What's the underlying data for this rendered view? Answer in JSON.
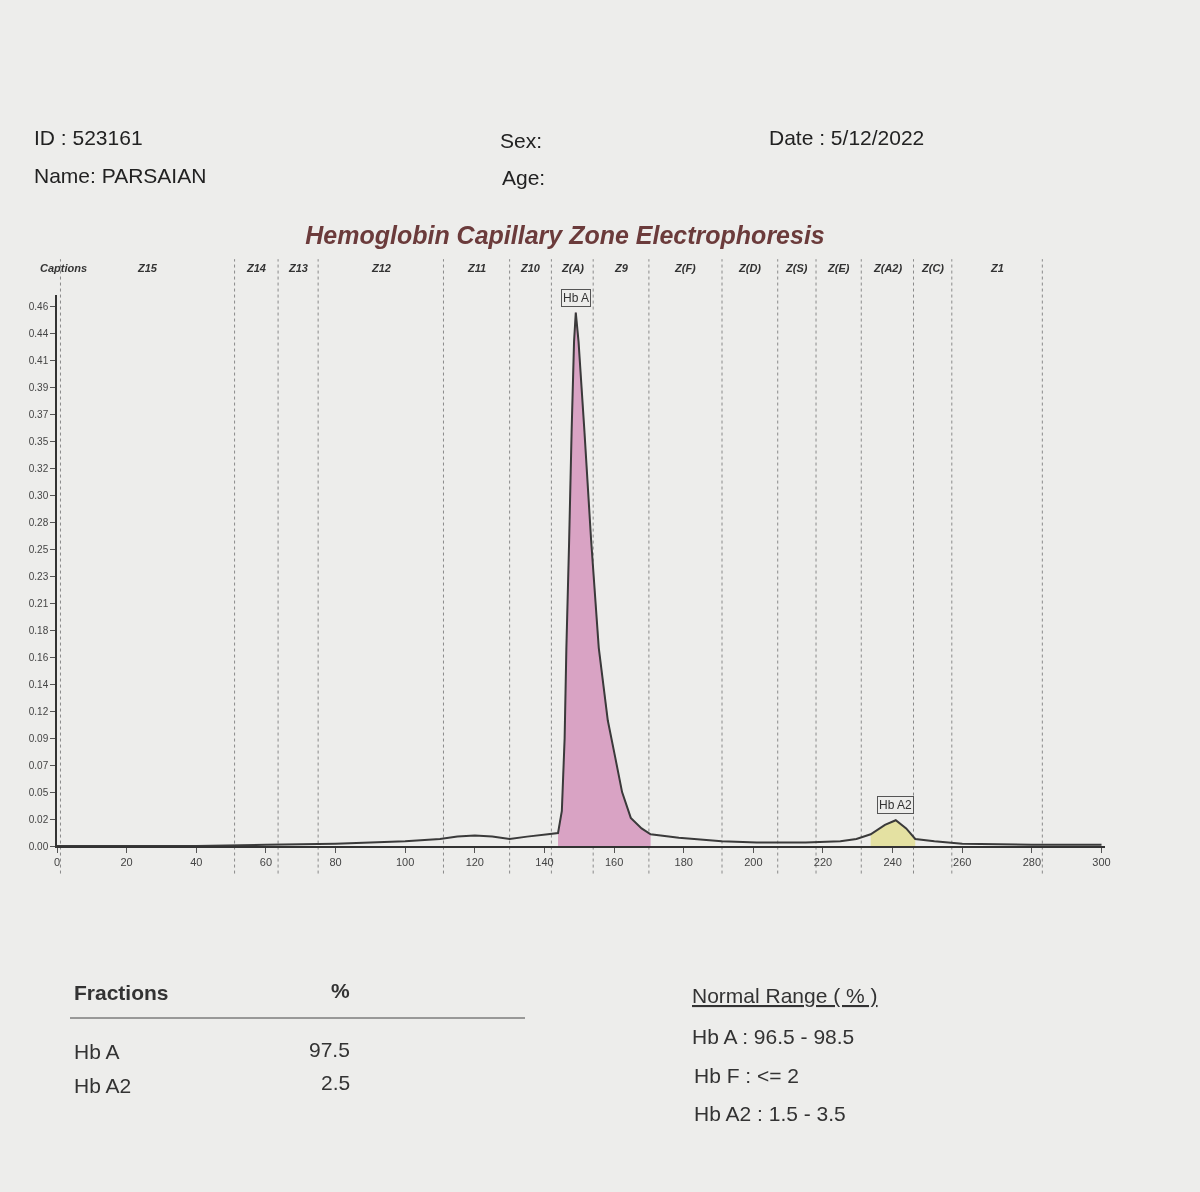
{
  "chart_data": {
    "type": "line",
    "title": "Hemoglobin Capillary Zone Electrophoresis",
    "series": [
      {
        "color": "#3a3a3a",
        "x": [
          0,
          20,
          40,
          60,
          80,
          100,
          110,
          115,
          120,
          125,
          130,
          135,
          141,
          143.9,
          145,
          145.8,
          146.3,
          147.1,
          147.8,
          148.5,
          149,
          149.8,
          151.5,
          153.4,
          155.6,
          158.2,
          160.3,
          162.3,
          164.8,
          167.9,
          170.5,
          178.6,
          190.9,
          201,
          215,
          225,
          229.6,
          233.7,
          237.8,
          240.9,
          243.9,
          246.5,
          252,
          260,
          280,
          300
        ],
        "values": [
          0,
          0,
          0,
          0.001,
          0.002,
          0.004,
          0.006,
          0.008,
          0.009,
          0.008,
          0.006,
          0.008,
          0.01,
          0.011,
          0.03,
          0.092,
          0.169,
          0.261,
          0.353,
          0.43,
          0.455,
          0.43,
          0.353,
          0.261,
          0.169,
          0.107,
          0.076,
          0.046,
          0.024,
          0.015,
          0.01,
          0.007,
          0.004,
          0.003,
          0.003,
          0.004,
          0.006,
          0.01,
          0.018,
          0.022,
          0.015,
          0.006,
          0.004,
          0.002,
          0.001,
          0.001
        ]
      },
      {
        "type": "area",
        "color": "#d9a3c4",
        "x": [
          143.9,
          145,
          145.8,
          146.3,
          147.1,
          147.8,
          148.5,
          149,
          149.8,
          151.5,
          153.4,
          155.6,
          158.2,
          160.3,
          162.3,
          164.8,
          167.9,
          170.5
        ],
        "values": [
          0.011,
          0.03,
          0.092,
          0.169,
          0.261,
          0.353,
          0.43,
          0.455,
          0.43,
          0.353,
          0.261,
          0.169,
          0.107,
          0.076,
          0.046,
          0.024,
          0.015,
          0.01
        ]
      },
      {
        "type": "area",
        "color": "#e4e1a2",
        "x": [
          233.7,
          237.8,
          240.9,
          243.9,
          246.5
        ],
        "values": [
          0.01,
          0.018,
          0.022,
          0.015,
          0.006
        ]
      }
    ],
    "xlim": [
      0,
      301
    ],
    "xticks": [
      0,
      20,
      40,
      60,
      80,
      100,
      120,
      140,
      160,
      180,
      200,
      220,
      240,
      260,
      280,
      300
    ],
    "ylim": [
      0,
      0.47
    ],
    "yticks": [
      {
        "value": 0,
        "label": "0.00"
      },
      {
        "value": 0.023,
        "label": "0.02"
      },
      {
        "value": 0.046,
        "label": "0.05"
      },
      {
        "value": 0.069,
        "label": "0.07"
      },
      {
        "value": 0.092,
        "label": "0.09"
      },
      {
        "value": 0.115,
        "label": "0.12"
      },
      {
        "value": 0.138,
        "label": "0.14"
      },
      {
        "value": 0.161,
        "label": "0.16"
      },
      {
        "value": 0.184,
        "label": "0.18"
      },
      {
        "value": 0.207,
        "label": "0.21"
      },
      0.23,
      {
        "value": 0.253,
        "label": "0.25"
      },
      {
        "value": 0.276,
        "label": "0.28"
      },
      {
        "value": 0.299,
        "label": "0.30"
      },
      {
        "value": 0.322,
        "label": "0.32"
      },
      {
        "value": 0.345,
        "label": "0.35"
      },
      {
        "value": 0.368,
        "label": "0.37"
      },
      {
        "value": 0.391,
        "label": "0.39"
      },
      {
        "value": 0.414,
        "label": "0.41"
      },
      {
        "value": 0.437,
        "label": "0.44"
      },
      0.46
    ],
    "ref_lines": [
      {
        "axis": "x",
        "value": 1,
        "color": "#8a8a8a",
        "line_style": "dotted"
      },
      {
        "axis": "x",
        "value": 51,
        "color": "#8a8a8a",
        "line_style": "dotted"
      },
      {
        "axis": "x",
        "value": 63.5,
        "color": "#8a8a8a",
        "line_style": "dotted"
      },
      {
        "axis": "x",
        "value": 75,
        "color": "#8a8a8a",
        "line_style": "dotted"
      },
      {
        "axis": "x",
        "value": 111,
        "color": "#8a8a8a",
        "line_style": "dotted"
      },
      {
        "axis": "x",
        "value": 130,
        "color": "#8a8a8a",
        "line_style": "dotted"
      },
      {
        "axis": "x",
        "value": 142,
        "color": "#8a8a8a",
        "line_style": "dotted"
      },
      {
        "axis": "x",
        "value": 154,
        "color": "#8a8a8a",
        "line_style": "dotted"
      },
      {
        "axis": "x",
        "value": 170,
        "color": "#8a8a8a",
        "line_style": "dotted"
      },
      {
        "axis": "x",
        "value": 191,
        "color": "#8a8a8a",
        "line_style": "dotted"
      },
      {
        "axis": "x",
        "value": 207,
        "color": "#8a8a8a",
        "line_style": "dotted"
      },
      {
        "axis": "x",
        "value": 218,
        "color": "#8a8a8a",
        "line_style": "dotted"
      },
      {
        "axis": "x",
        "value": 231,
        "color": "#8a8a8a",
        "line_style": "dotted"
      },
      {
        "axis": "x",
        "value": 246,
        "color": "#8a8a8a",
        "line_style": "dotted"
      },
      {
        "axis": "x",
        "value": 257,
        "color": "#8a8a8a",
        "line_style": "dotted"
      },
      {
        "axis": "x",
        "value": 283,
        "color": "#8a8a8a",
        "line_style": "dotted"
      }
    ],
    "annotations": [
      "Captions",
      "Z15",
      "Z14",
      "Z13",
      "Z12",
      "Z11",
      "Z10",
      "Z(A)",
      "Z9",
      "Z(F)",
      "Z(D)",
      "Z(S)",
      "Z(E)",
      "Z(A2)",
      "Z(C)",
      "Z1",
      "ID : 523161",
      "Name: PARSAIAN",
      "Sex:",
      "Age:",
      "Date : 5/12/2022",
      {
        "text": "Hb A",
        "x": 149,
        "y": 0.455
      },
      {
        "text": "Hb A2",
        "x": 240.9,
        "y": 0.022
      },
      "Fractions",
      "%",
      "Hb A",
      "97.5",
      "Hb A2",
      "2.5",
      "Normal Range ( % )",
      "Hb A : 96.5 - 98.5",
      "Hb F : <= 2",
      "Hb A2 : 1.5 - 3.5"
    ]
  }
}
